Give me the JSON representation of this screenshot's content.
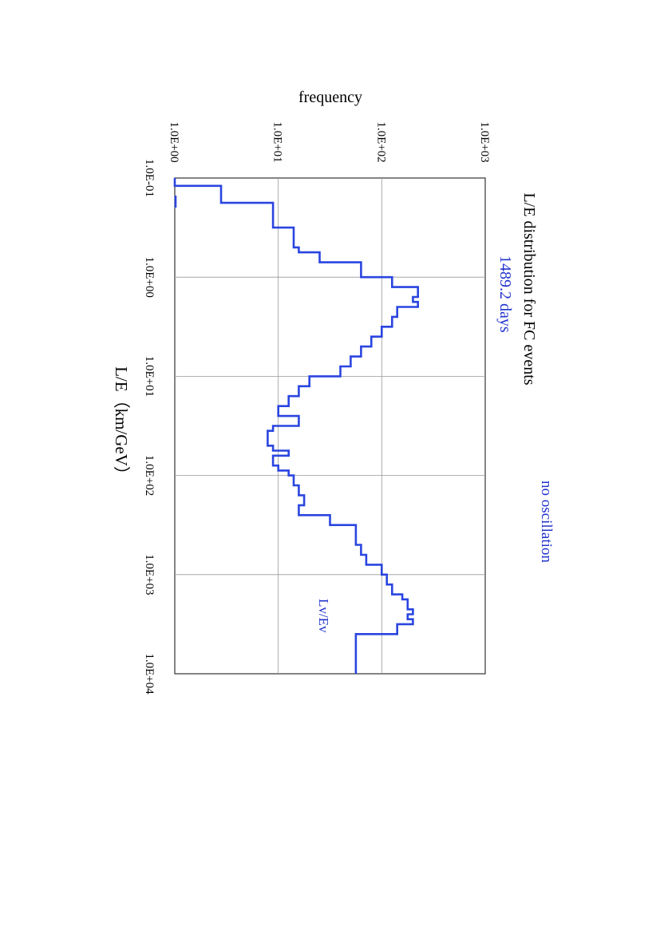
{
  "chart_data": {
    "type": "line",
    "title": "L/E distribution for FC events",
    "subtitle": "1489.2 days",
    "annotation": "no oscillation",
    "series_label": "Lv/Ev",
    "xlabel": "L/E（km/GeV）",
    "ylabel": "frequency",
    "x_scale": "log",
    "y_scale": "log",
    "xlim": [
      0.1,
      10000
    ],
    "ylim": [
      1,
      1000
    ],
    "x_ticks": [
      "1.0E-01",
      "1.0E+00",
      "1.0E+01",
      "1.0E+02",
      "1.0E+03",
      "1.0E+04"
    ],
    "y_ticks": [
      "1.0E+00",
      "1.0E+01",
      "1.0E+02",
      "1.0E+03"
    ],
    "grid": true,
    "line_color": "#2a45e0",
    "series": [
      {
        "name": "Lv/Ev",
        "x": [
          0.1,
          0.12,
          0.178,
          0.316,
          0.501,
          0.562,
          0.708,
          1.0,
          1.259,
          1.585,
          1.778,
          1.995,
          2.512,
          3.162,
          3.981,
          5.012,
          6.31,
          7.943,
          10.0,
          12.59,
          15.85,
          19.95,
          25.12,
          31.62,
          35.48,
          50.12,
          56.23,
          63.1,
          79.43,
          89.13,
          100.0,
          125.9,
          158.5,
          199.5,
          251.2,
          316.2,
          501.2,
          630.9,
          794.3,
          1000,
          1259,
          1585,
          1778,
          2238,
          2512,
          2818,
          3162,
          3981,
          10000
        ],
        "values": [
          1.0,
          2.8,
          8.9,
          14.1,
          15.8,
          25.1,
          63.1,
          126,
          224,
          200,
          224,
          141,
          126,
          100,
          79.4,
          63.1,
          50.1,
          39.8,
          20.0,
          15.8,
          12.6,
          10.0,
          15.8,
          8.9,
          7.9,
          8.9,
          12.6,
          8.9,
          10.0,
          12.6,
          14.1,
          15.8,
          17.8,
          15.8,
          31.6,
          56.2,
          63.1,
          70.8,
          100,
          112,
          126,
          158,
          178,
          200,
          178,
          200,
          141,
          56.2,
          56.2
        ]
      }
    ]
  }
}
